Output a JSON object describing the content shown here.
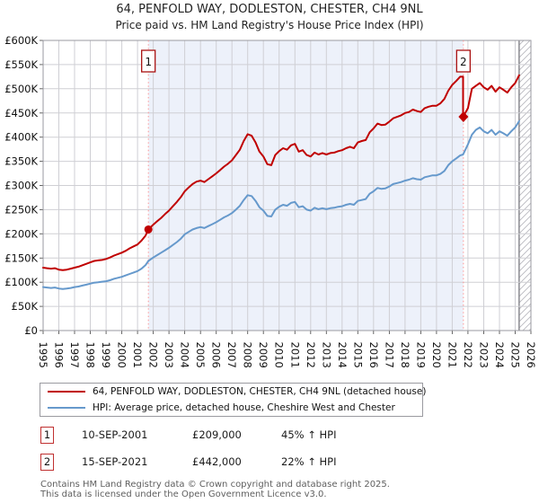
{
  "title": "64, PENFOLD WAY, DODLESTON, CHESTER, CH4 9NL",
  "subtitle": "Price paid vs. HM Land Registry's House Price Index (HPI)",
  "chart_data": {
    "type": "line",
    "y_unit": "GBP thousands",
    "x_axis": {
      "min": 1995,
      "max": 2026,
      "tick_years": [
        "1995",
        "1996",
        "1997",
        "1998",
        "1999",
        "2000",
        "2001",
        "2002",
        "2003",
        "2004",
        "2005",
        "2006",
        "2007",
        "2008",
        "2009",
        "2010",
        "2011",
        "2012",
        "2013",
        "2014",
        "2015",
        "2016",
        "2017",
        "2018",
        "2019",
        "2020",
        "2021",
        "2022",
        "2023",
        "2024",
        "2025",
        "2026"
      ]
    },
    "y_axis": {
      "min_k": 0,
      "max_k": 600,
      "tick_step_k": 50,
      "tick_labels": [
        "£0",
        "£50K",
        "£100K",
        "£150K",
        "£200K",
        "£250K",
        "£300K",
        "£350K",
        "£400K",
        "£450K",
        "£500K",
        "£550K",
        "£600K"
      ]
    },
    "shaded_region": {
      "from": 2001.69,
      "to": 2021.71
    },
    "hatch_region": {
      "from": 2025.25,
      "to": 2026
    },
    "colors": {
      "band": "#edf1fa",
      "grid": "#cfcfd4",
      "border": "#9a9aa0",
      "sale_line": "#ff9191",
      "marker": "#c00000",
      "hatch_line": "#b9b9c0"
    },
    "series": [
      {
        "name": "64, PENFOLD WAY, DODLESTON, CHESTER, CH4 9NL (detached house)",
        "color": "#c00000",
        "points": [
          [
            1995,
            130
          ],
          [
            1995.25,
            129
          ],
          [
            1995.5,
            128
          ],
          [
            1995.75,
            129
          ],
          [
            1996,
            126
          ],
          [
            1996.25,
            125
          ],
          [
            1996.5,
            126
          ],
          [
            1996.75,
            128
          ],
          [
            1997,
            130
          ],
          [
            1997.25,
            132
          ],
          [
            1997.5,
            135
          ],
          [
            1997.75,
            138
          ],
          [
            1998,
            141
          ],
          [
            1998.25,
            144
          ],
          [
            1998.5,
            145
          ],
          [
            1998.75,
            146
          ],
          [
            1999,
            148
          ],
          [
            1999.25,
            151
          ],
          [
            1999.5,
            155
          ],
          [
            1999.75,
            158
          ],
          [
            2000,
            161
          ],
          [
            2000.25,
            165
          ],
          [
            2000.5,
            170
          ],
          [
            2000.75,
            174
          ],
          [
            2001,
            178
          ],
          [
            2001.25,
            186
          ],
          [
            2001.5,
            196
          ],
          [
            2001.69,
            209
          ],
          [
            2002,
            219
          ],
          [
            2002.25,
            226
          ],
          [
            2002.5,
            233
          ],
          [
            2002.75,
            241
          ],
          [
            2003,
            248
          ],
          [
            2003.25,
            257
          ],
          [
            2003.5,
            266
          ],
          [
            2003.75,
            276
          ],
          [
            2004,
            288
          ],
          [
            2004.25,
            296
          ],
          [
            2004.5,
            303
          ],
          [
            2004.75,
            308
          ],
          [
            2005,
            310
          ],
          [
            2005.25,
            307
          ],
          [
            2005.5,
            313
          ],
          [
            2005.75,
            319
          ],
          [
            2006,
            325
          ],
          [
            2006.25,
            332
          ],
          [
            2006.5,
            339
          ],
          [
            2006.75,
            345
          ],
          [
            2007,
            352
          ],
          [
            2007.25,
            363
          ],
          [
            2007.5,
            374
          ],
          [
            2007.75,
            392
          ],
          [
            2008,
            406
          ],
          [
            2008.25,
            403
          ],
          [
            2008.5,
            389
          ],
          [
            2008.75,
            370
          ],
          [
            2009,
            360
          ],
          [
            2009.25,
            344
          ],
          [
            2009.5,
            342
          ],
          [
            2009.75,
            363
          ],
          [
            2010,
            371
          ],
          [
            2010.25,
            377
          ],
          [
            2010.5,
            374
          ],
          [
            2010.75,
            383
          ],
          [
            2011,
            386
          ],
          [
            2011.25,
            370
          ],
          [
            2011.5,
            373
          ],
          [
            2011.75,
            363
          ],
          [
            2012,
            360
          ],
          [
            2012.25,
            368
          ],
          [
            2012.5,
            364
          ],
          [
            2012.75,
            367
          ],
          [
            2013,
            364
          ],
          [
            2013.25,
            367
          ],
          [
            2013.5,
            368
          ],
          [
            2013.75,
            371
          ],
          [
            2014,
            373
          ],
          [
            2014.25,
            377
          ],
          [
            2014.5,
            380
          ],
          [
            2014.75,
            377
          ],
          [
            2015,
            389
          ],
          [
            2015.25,
            392
          ],
          [
            2015.5,
            394
          ],
          [
            2015.75,
            410
          ],
          [
            2016,
            418
          ],
          [
            2016.25,
            428
          ],
          [
            2016.5,
            425
          ],
          [
            2016.75,
            426
          ],
          [
            2017,
            432
          ],
          [
            2017.25,
            439
          ],
          [
            2017.5,
            442
          ],
          [
            2017.75,
            445
          ],
          [
            2018,
            450
          ],
          [
            2018.25,
            452
          ],
          [
            2018.5,
            457
          ],
          [
            2018.75,
            454
          ],
          [
            2019,
            452
          ],
          [
            2019.25,
            460
          ],
          [
            2019.5,
            463
          ],
          [
            2019.75,
            465
          ],
          [
            2020,
            465
          ],
          [
            2020.25,
            470
          ],
          [
            2020.5,
            479
          ],
          [
            2020.75,
            496
          ],
          [
            2021,
            508
          ],
          [
            2021.25,
            516
          ],
          [
            2021.5,
            525
          ],
          [
            2021.69,
            525
          ],
          [
            2021.69,
            442
          ],
          [
            2022,
            460
          ],
          [
            2022.25,
            500
          ],
          [
            2022.5,
            506
          ],
          [
            2022.75,
            512
          ],
          [
            2023,
            503
          ],
          [
            2023.25,
            498
          ],
          [
            2023.5,
            506
          ],
          [
            2023.75,
            494
          ],
          [
            2024,
            503
          ],
          [
            2024.25,
            498
          ],
          [
            2024.5,
            492
          ],
          [
            2024.75,
            503
          ],
          [
            2025,
            512
          ],
          [
            2025.25,
            528
          ]
        ]
      },
      {
        "name": "HPI: Average price, detached house, Cheshire West and Chester",
        "color": "#6699cc",
        "points": [
          [
            1995,
            90
          ],
          [
            1995.25,
            89
          ],
          [
            1995.5,
            88
          ],
          [
            1995.75,
            89
          ],
          [
            1996,
            87
          ],
          [
            1996.25,
            86
          ],
          [
            1996.5,
            87
          ],
          [
            1996.75,
            88
          ],
          [
            1997,
            90
          ],
          [
            1997.25,
            91
          ],
          [
            1997.5,
            93
          ],
          [
            1997.75,
            95
          ],
          [
            1998,
            97
          ],
          [
            1998.25,
            99
          ],
          [
            1998.5,
            100
          ],
          [
            1998.75,
            101
          ],
          [
            1999,
            102
          ],
          [
            1999.25,
            104
          ],
          [
            1999.5,
            107
          ],
          [
            1999.75,
            109
          ],
          [
            2000,
            111
          ],
          [
            2000.25,
            114
          ],
          [
            2000.5,
            117
          ],
          [
            2000.75,
            120
          ],
          [
            2001,
            123
          ],
          [
            2001.25,
            128
          ],
          [
            2001.5,
            135
          ],
          [
            2001.69,
            144
          ],
          [
            2002,
            151
          ],
          [
            2002.25,
            156
          ],
          [
            2002.5,
            161
          ],
          [
            2002.75,
            166
          ],
          [
            2003,
            171
          ],
          [
            2003.25,
            177
          ],
          [
            2003.5,
            183
          ],
          [
            2003.75,
            190
          ],
          [
            2004,
            199
          ],
          [
            2004.25,
            204
          ],
          [
            2004.5,
            209
          ],
          [
            2004.75,
            212
          ],
          [
            2005,
            214
          ],
          [
            2005.25,
            212
          ],
          [
            2005.5,
            216
          ],
          [
            2005.75,
            220
          ],
          [
            2006,
            224
          ],
          [
            2006.25,
            229
          ],
          [
            2006.5,
            234
          ],
          [
            2006.75,
            238
          ],
          [
            2007,
            243
          ],
          [
            2007.25,
            250
          ],
          [
            2007.5,
            258
          ],
          [
            2007.75,
            270
          ],
          [
            2008,
            280
          ],
          [
            2008.25,
            278
          ],
          [
            2008.5,
            268
          ],
          [
            2008.75,
            255
          ],
          [
            2009,
            248
          ],
          [
            2009.25,
            237
          ],
          [
            2009.5,
            236
          ],
          [
            2009.75,
            250
          ],
          [
            2010,
            256
          ],
          [
            2010.25,
            260
          ],
          [
            2010.5,
            258
          ],
          [
            2010.75,
            264
          ],
          [
            2011,
            266
          ],
          [
            2011.25,
            255
          ],
          [
            2011.5,
            257
          ],
          [
            2011.75,
            250
          ],
          [
            2012,
            248
          ],
          [
            2012.25,
            254
          ],
          [
            2012.5,
            251
          ],
          [
            2012.75,
            253
          ],
          [
            2013,
            251
          ],
          [
            2013.25,
            253
          ],
          [
            2013.5,
            254
          ],
          [
            2013.75,
            256
          ],
          [
            2014,
            257
          ],
          [
            2014.25,
            260
          ],
          [
            2014.5,
            262
          ],
          [
            2014.75,
            260
          ],
          [
            2015,
            268
          ],
          [
            2015.25,
            270
          ],
          [
            2015.5,
            272
          ],
          [
            2015.75,
            283
          ],
          [
            2016,
            288
          ],
          [
            2016.25,
            295
          ],
          [
            2016.5,
            293
          ],
          [
            2016.75,
            294
          ],
          [
            2017,
            298
          ],
          [
            2017.25,
            303
          ],
          [
            2017.5,
            305
          ],
          [
            2017.75,
            307
          ],
          [
            2018,
            310
          ],
          [
            2018.25,
            312
          ],
          [
            2018.5,
            315
          ],
          [
            2018.75,
            313
          ],
          [
            2019,
            312
          ],
          [
            2019.25,
            317
          ],
          [
            2019.5,
            319
          ],
          [
            2019.75,
            321
          ],
          [
            2020,
            321
          ],
          [
            2020.25,
            324
          ],
          [
            2020.5,
            330
          ],
          [
            2020.75,
            342
          ],
          [
            2021,
            350
          ],
          [
            2021.25,
            356
          ],
          [
            2021.5,
            362
          ],
          [
            2021.69,
            364
          ],
          [
            2022,
            385
          ],
          [
            2022.25,
            405
          ],
          [
            2022.5,
            415
          ],
          [
            2022.75,
            420
          ],
          [
            2023,
            412
          ],
          [
            2023.25,
            408
          ],
          [
            2023.5,
            415
          ],
          [
            2023.75,
            405
          ],
          [
            2024,
            412
          ],
          [
            2024.25,
            408
          ],
          [
            2024.5,
            403
          ],
          [
            2024.75,
            412
          ],
          [
            2025,
            420
          ],
          [
            2025.25,
            433
          ]
        ]
      }
    ],
    "sales": [
      {
        "label": "1",
        "x": 2001.69,
        "price_k": 209,
        "marker": "circle"
      },
      {
        "label": "2",
        "x": 2021.71,
        "price_k": 442,
        "marker": "diamond"
      }
    ]
  },
  "table": {
    "rows": [
      {
        "num": "1",
        "date": "10-SEP-2001",
        "price": "£209,000",
        "vs_hpi": "45% ↑ HPI"
      },
      {
        "num": "2",
        "date": "15-SEP-2021",
        "price": "£442,000",
        "vs_hpi": "22% ↑ HPI"
      }
    ]
  },
  "footer": {
    "line1": "Contains HM Land Registry data © Crown copyright and database right 2025.",
    "line2": "This data is licensed under the Open Government Licence v3.0."
  }
}
